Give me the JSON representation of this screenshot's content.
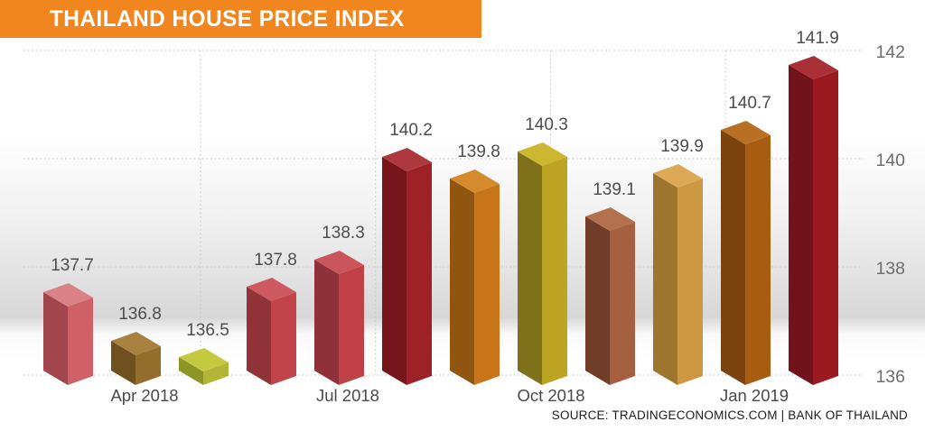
{
  "header": {
    "title": "THAILAND HOUSE PRICE INDEX",
    "banner_color": "#f0861d",
    "text_color": "#ffffff"
  },
  "source_line": "SOURCE: TRADINGECONOMICS.COM | BANK OF THAILAND",
  "chart_data": {
    "type": "bar",
    "style": "3d-columns",
    "title": "THAILAND HOUSE PRICE INDEX",
    "ylim": [
      136,
      142
    ],
    "y_ticks": [
      136,
      138,
      140,
      142
    ],
    "y_axis_side": "right",
    "grid": "dotted",
    "value_labels_shown": true,
    "label_color": "#4d4d4d",
    "axis_label_color": "#6e6e6e",
    "grid_color": "#c9c9c9",
    "bars": [
      {
        "value": 137.7,
        "front": "#cf6066",
        "side": "#a2464d",
        "top": "#da8287"
      },
      {
        "value": 136.8,
        "front": "#936d2b",
        "side": "#6f511f",
        "top": "#a88140"
      },
      {
        "value": 136.5,
        "front": "#b2b634",
        "side": "#8d9526",
        "top": "#c5c940"
      },
      {
        "value": 137.8,
        "front": "#c2444b",
        "side": "#92333a",
        "top": "#cd5a60"
      },
      {
        "value": 138.3,
        "front": "#bf4147",
        "side": "#8f3138",
        "top": "#ca555b"
      },
      {
        "value": 140.2,
        "front": "#9e2127",
        "side": "#76161b",
        "top": "#ae383d"
      },
      {
        "value": 139.8,
        "front": "#c8751a",
        "side": "#8f5511",
        "top": "#d68a2e"
      },
      {
        "value": 140.3,
        "front": "#bda524",
        "side": "#7f701c",
        "top": "#cbb730"
      },
      {
        "value": 139.1,
        "front": "#a5603f",
        "side": "#6f3d28",
        "top": "#b4714d"
      },
      {
        "value": 139.9,
        "front": "#ce9843",
        "side": "#9d752c",
        "top": "#dcaa57"
      },
      {
        "value": 140.7,
        "front": "#a85c12",
        "side": "#7b430e",
        "top": "#b97022"
      },
      {
        "value": 141.9,
        "front": "#9a1a20",
        "side": "#72121a",
        "top": "#aa3038"
      }
    ],
    "x_ticks": [
      {
        "label": "Apr 2018",
        "bar_index": 1
      },
      {
        "label": "Jul 2018",
        "bar_index": 4
      },
      {
        "label": "Oct 2018",
        "bar_index": 7
      },
      {
        "label": "Jan 2019",
        "bar_index": 10
      }
    ]
  }
}
